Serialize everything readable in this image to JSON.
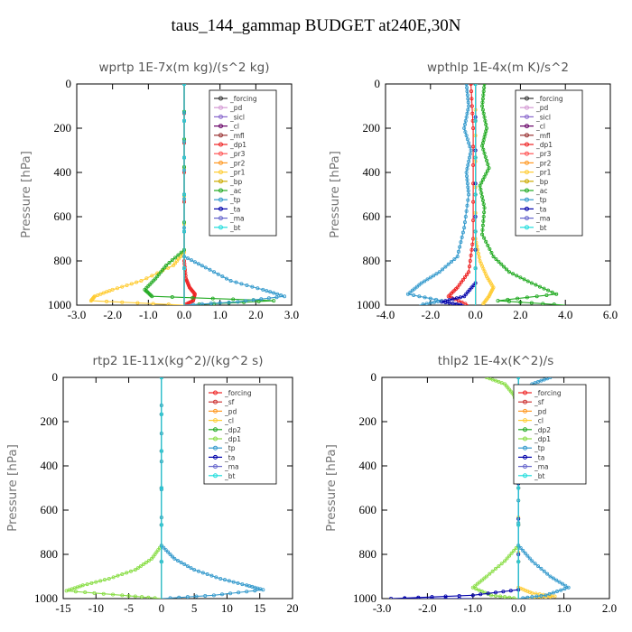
{
  "figure_title": "taus_144_gammap  BUDGET at240E,30N",
  "chart_data": [
    {
      "type": "line",
      "title": "wprtp  1E-7x(m kg)/(s^2 kg)",
      "ylabel": "Pressure  [hPa]",
      "xlim": [
        -3,
        3
      ],
      "ylim": [
        1000,
        0
      ],
      "xticks": [
        "-3.0",
        "-2.0",
        "-1.0",
        "0.0",
        "1.0",
        "2.0",
        "3.0"
      ],
      "xtick_values": [
        -3,
        -2,
        -1,
        0,
        1,
        2,
        3
      ],
      "yticks": [
        "0",
        "200",
        "400",
        "600",
        "800",
        "1000"
      ],
      "ytick_values": [
        0,
        200,
        400,
        600,
        800,
        1000
      ],
      "legend_position": "top-right",
      "series": [
        {
          "name": "_forcing",
          "color": "#333333",
          "x": [
            0,
            0
          ],
          "y": [
            0,
            1000
          ]
        },
        {
          "name": "_pd",
          "color": "#d49ad4",
          "x": [
            0,
            0
          ],
          "y": [
            0,
            1000
          ]
        },
        {
          "name": "_sicl",
          "color": "#8866cc",
          "x": [
            0,
            0
          ],
          "y": [
            0,
            1000
          ]
        },
        {
          "name": "_cl",
          "color": "#660066",
          "x": [
            0,
            0
          ],
          "y": [
            0,
            1000
          ]
        },
        {
          "name": "_mfl",
          "color": "#993333",
          "x": [
            0,
            0
          ],
          "y": [
            0,
            1000
          ]
        },
        {
          "name": "_dp1",
          "color": "#ee2222",
          "x": [
            0,
            0,
            0.05,
            0.15,
            0.3,
            0.25,
            0
          ],
          "y": [
            0,
            800,
            880,
            920,
            950,
            980,
            1000
          ]
        },
        {
          "name": "_pr3",
          "color": "#ff5555",
          "x": [
            0,
            0
          ],
          "y": [
            0,
            1000
          ]
        },
        {
          "name": "_pr2",
          "color": "#ff9922",
          "x": [
            0,
            0
          ],
          "y": [
            0,
            1000
          ]
        },
        {
          "name": "_pr1",
          "color": "#ffcc33",
          "x": [
            0,
            0,
            -0.3,
            -1.2,
            -2.0,
            -2.5,
            -2.6,
            0
          ],
          "y": [
            0,
            760,
            820,
            890,
            930,
            960,
            980,
            1000
          ]
        },
        {
          "name": "_bp",
          "color": "#ccaa00",
          "x": [
            0,
            0
          ],
          "y": [
            0,
            1000
          ]
        },
        {
          "name": "_ac",
          "color": "#22aa22",
          "x": [
            0,
            0,
            -0.5,
            -0.8,
            -1.1,
            -0.9,
            2.5,
            0
          ],
          "y": [
            0,
            750,
            820,
            880,
            930,
            960,
            980,
            1000
          ]
        },
        {
          "name": "_tp",
          "color": "#3399cc",
          "x": [
            0,
            0,
            0.6,
            1.3,
            2.2,
            2.8,
            1.5,
            0
          ],
          "y": [
            0,
            780,
            830,
            890,
            930,
            960,
            985,
            1000
          ]
        },
        {
          "name": "_ta",
          "color": "#0000aa",
          "x": [
            0,
            0
          ],
          "y": [
            0,
            1000
          ]
        },
        {
          "name": "_ma",
          "color": "#6666cc",
          "x": [
            0,
            0
          ],
          "y": [
            0,
            1000
          ]
        },
        {
          "name": "_bt",
          "color": "#22dddd",
          "x": [
            0,
            0
          ],
          "y": [
            0,
            1000
          ]
        }
      ]
    },
    {
      "type": "line",
      "title": "wpthlp  1E-4x(m K)/s^2",
      "ylabel": "Pressure  [hPa]",
      "xlim": [
        -4,
        6
      ],
      "ylim": [
        1000,
        0
      ],
      "xticks": [
        "-4.0",
        "-2.0",
        "0.0",
        "2.0",
        "4.0",
        "6.0"
      ],
      "xtick_values": [
        -4,
        -2,
        0,
        2,
        4,
        6
      ],
      "yticks": [
        "0",
        "200",
        "400",
        "600",
        "800",
        "1000"
      ],
      "ytick_values": [
        0,
        200,
        400,
        600,
        800,
        1000
      ],
      "legend_position": "top-right",
      "series": [
        {
          "name": "_forcing",
          "color": "#333333",
          "x": [
            0,
            0
          ],
          "y": [
            0,
            1000
          ]
        },
        {
          "name": "_pd",
          "color": "#d49ad4",
          "x": [
            0,
            0
          ],
          "y": [
            0,
            1000
          ]
        },
        {
          "name": "_sicl",
          "color": "#8866cc",
          "x": [
            0,
            0
          ],
          "y": [
            0,
            1000
          ]
        },
        {
          "name": "_cl",
          "color": "#660066",
          "x": [
            0,
            0
          ],
          "y": [
            0,
            1000
          ]
        },
        {
          "name": "_mfl",
          "color": "#993333",
          "x": [
            0,
            0
          ],
          "y": [
            0,
            1000
          ]
        },
        {
          "name": "_dp1",
          "color": "#ee2222",
          "x": [
            -0.2,
            -0.1,
            -0.1,
            -0.3,
            -0.8,
            -1.2,
            -0.3
          ],
          "y": [
            0,
            200,
            700,
            850,
            920,
            960,
            1000
          ]
        },
        {
          "name": "_pr3",
          "color": "#ff5555",
          "x": [
            0,
            0
          ],
          "y": [
            0,
            1000
          ]
        },
        {
          "name": "_pr2",
          "color": "#ff9922",
          "x": [
            0,
            0
          ],
          "y": [
            0,
            1000
          ]
        },
        {
          "name": "_pr1",
          "color": "#ffcc33",
          "x": [
            0,
            0,
            0.2,
            0.5,
            0.8,
            0.6,
            0.3
          ],
          "y": [
            0,
            700,
            800,
            870,
            920,
            960,
            1000
          ]
        },
        {
          "name": "_bp",
          "color": "#ccaa00",
          "x": [
            0,
            0
          ],
          "y": [
            0,
            1000
          ]
        },
        {
          "name": "_ac",
          "color": "#22aa22",
          "x": [
            0.4,
            0.3,
            0.5,
            0.3,
            0.6,
            0.2,
            0.4,
            0.3,
            0.8,
            1.5,
            2.5,
            3.6,
            1.0,
            4.0
          ],
          "y": [
            0,
            100,
            200,
            280,
            380,
            460,
            560,
            680,
            780,
            850,
            900,
            950,
            980,
            1000
          ]
        },
        {
          "name": "_tp",
          "color": "#3399cc",
          "x": [
            -0.4,
            -0.3,
            -0.5,
            -0.2,
            -0.4,
            -0.3,
            -0.5,
            -0.8,
            -1.6,
            -2.4,
            -3.0,
            -1.5,
            -2.5
          ],
          "y": [
            0,
            100,
            200,
            300,
            400,
            500,
            650,
            780,
            850,
            900,
            950,
            980,
            1000
          ]
        },
        {
          "name": "_ta",
          "color": "#0000aa",
          "x": [
            0,
            0,
            -0.5,
            -1.5,
            -0.5
          ],
          "y": [
            0,
            900,
            960,
            985,
            1000
          ]
        },
        {
          "name": "_ma",
          "color": "#6666cc",
          "x": [
            0,
            0
          ],
          "y": [
            0,
            1000
          ]
        },
        {
          "name": "_bt",
          "color": "#22dddd",
          "x": [
            0,
            0
          ],
          "y": [
            0,
            1000
          ]
        }
      ]
    },
    {
      "type": "line",
      "title": "rtp2  1E-11x(kg^2)/(kg^2 s)",
      "ylabel": "Pressure  [hPa]",
      "xlim": [
        -15,
        20
      ],
      "ylim": [
        1000,
        0
      ],
      "xticks": [
        "-15",
        "-10",
        "-5",
        "0",
        "5",
        "10",
        "15",
        "20"
      ],
      "xtick_values": [
        -15,
        -10,
        -5,
        0,
        5,
        10,
        15,
        20
      ],
      "yticks": [
        "0",
        "200",
        "400",
        "600",
        "800",
        "1000"
      ],
      "ytick_values": [
        0,
        200,
        400,
        600,
        800,
        1000
      ],
      "legend_position": "top-right",
      "series": [
        {
          "name": "_forcing",
          "color": "#ee2222",
          "x": [
            0,
            0
          ],
          "y": [
            0,
            1000
          ]
        },
        {
          "name": "_sf",
          "color": "#cc3333",
          "x": [
            0,
            0
          ],
          "y": [
            0,
            1000
          ]
        },
        {
          "name": "_pd",
          "color": "#ff9922",
          "x": [
            0,
            0
          ],
          "y": [
            0,
            1000
          ]
        },
        {
          "name": "_cl",
          "color": "#ffcc33",
          "x": [
            0,
            0
          ],
          "y": [
            0,
            1000
          ]
        },
        {
          "name": "_dp2",
          "color": "#22aa22",
          "x": [
            0,
            0
          ],
          "y": [
            0,
            1000
          ]
        },
        {
          "name": "_dp1",
          "color": "#88dd44",
          "x": [
            0,
            0,
            -1.5,
            -4,
            -8,
            -12,
            -14.5,
            -6,
            0
          ],
          "y": [
            0,
            760,
            820,
            870,
            910,
            940,
            965,
            985,
            1000
          ]
        },
        {
          "name": "_tp",
          "color": "#3399cc",
          "x": [
            0,
            0,
            2,
            5,
            9,
            13,
            15.5,
            8,
            0
          ],
          "y": [
            0,
            760,
            820,
            870,
            910,
            940,
            960,
            985,
            1000
          ]
        },
        {
          "name": "_ta",
          "color": "#0000aa",
          "x": [
            0,
            0
          ],
          "y": [
            0,
            1000
          ]
        },
        {
          "name": "_ma",
          "color": "#6666cc",
          "x": [
            0,
            0
          ],
          "y": [
            0,
            1000
          ]
        },
        {
          "name": "_bt",
          "color": "#22dddd",
          "x": [
            0,
            0
          ],
          "y": [
            0,
            1000
          ]
        }
      ]
    },
    {
      "type": "line",
      "title": "thlp2  1E-4x(K^2)/s",
      "ylabel": "Pressure  [hPa]",
      "xlim": [
        -3,
        2
      ],
      "ylim": [
        1000,
        0
      ],
      "xticks": [
        "-3.0",
        "-2.0",
        "-1.0",
        "0.0",
        "1.0",
        "2.0"
      ],
      "xtick_values": [
        -3,
        -2,
        -1,
        0,
        1,
        2
      ],
      "yticks": [
        "0",
        "200",
        "400",
        "600",
        "800",
        "1000"
      ],
      "ytick_values": [
        0,
        200,
        400,
        600,
        800,
        1000
      ],
      "legend_position": "top-right",
      "series": [
        {
          "name": "_forcing",
          "color": "#ee2222",
          "x": [
            0,
            0
          ],
          "y": [
            0,
            1000
          ]
        },
        {
          "name": "_sf",
          "color": "#cc3333",
          "x": [
            0,
            0
          ],
          "y": [
            0,
            1000
          ]
        },
        {
          "name": "_pd",
          "color": "#ff9922",
          "x": [
            0,
            0
          ],
          "y": [
            0,
            1000
          ]
        },
        {
          "name": "_cl",
          "color": "#ffcc33",
          "x": [
            0,
            0,
            0.3,
            0.8,
            0.2
          ],
          "y": [
            0,
            950,
            975,
            990,
            1000
          ]
        },
        {
          "name": "_dp2",
          "color": "#22aa22",
          "x": [
            0,
            0
          ],
          "y": [
            0,
            1000
          ]
        },
        {
          "name": "_dp1",
          "color": "#88dd44",
          "x": [
            -0.7,
            -0.3,
            -0.1,
            0,
            0,
            -0.3,
            -0.7,
            -1.0,
            -0.6,
            0
          ],
          "y": [
            0,
            30,
            80,
            150,
            760,
            830,
            900,
            950,
            985,
            1000
          ]
        },
        {
          "name": "_tp",
          "color": "#3399cc",
          "x": [
            0.7,
            0.3,
            0.1,
            0,
            0,
            0.3,
            0.7,
            1.1,
            0.6,
            0
          ],
          "y": [
            0,
            30,
            80,
            150,
            760,
            830,
            900,
            950,
            985,
            1000
          ]
        },
        {
          "name": "_ta",
          "color": "#0000aa",
          "x": [
            0,
            0,
            -1.0,
            -2.8,
            -1.0
          ],
          "y": [
            0,
            960,
            985,
            1000,
            1000
          ]
        },
        {
          "name": "_ma",
          "color": "#6666cc",
          "x": [
            0,
            0
          ],
          "y": [
            0,
            1000
          ]
        },
        {
          "name": "_bt",
          "color": "#22dddd",
          "x": [
            0,
            0
          ],
          "y": [
            0,
            1000
          ]
        }
      ]
    }
  ]
}
